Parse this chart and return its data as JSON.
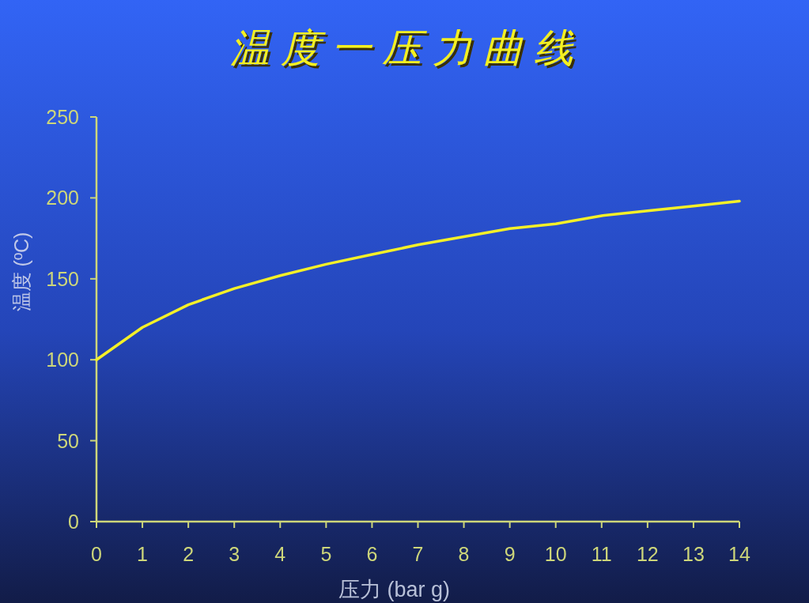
{
  "chart_data": {
    "type": "line",
    "title": "温度一压力曲线",
    "xlabel": "压力 (bar g)",
    "ylabel": "温度 (ºC)",
    "x": [
      0,
      1,
      2,
      3,
      4,
      5,
      6,
      7,
      8,
      9,
      10,
      11,
      12,
      13,
      14
    ],
    "series": [
      {
        "color": "#f4f028",
        "values": [
          100,
          120,
          134,
          144,
          152,
          159,
          165,
          171,
          176,
          181,
          184,
          189,
          192,
          195,
          198
        ]
      }
    ],
    "xlim": [
      0,
      14
    ],
    "ylim": [
      0,
      250
    ],
    "xticks": [
      0,
      1,
      2,
      3,
      4,
      5,
      6,
      7,
      8,
      9,
      10,
      11,
      12,
      13,
      14
    ],
    "yticks": [
      0,
      50,
      100,
      150,
      200,
      250
    ]
  }
}
